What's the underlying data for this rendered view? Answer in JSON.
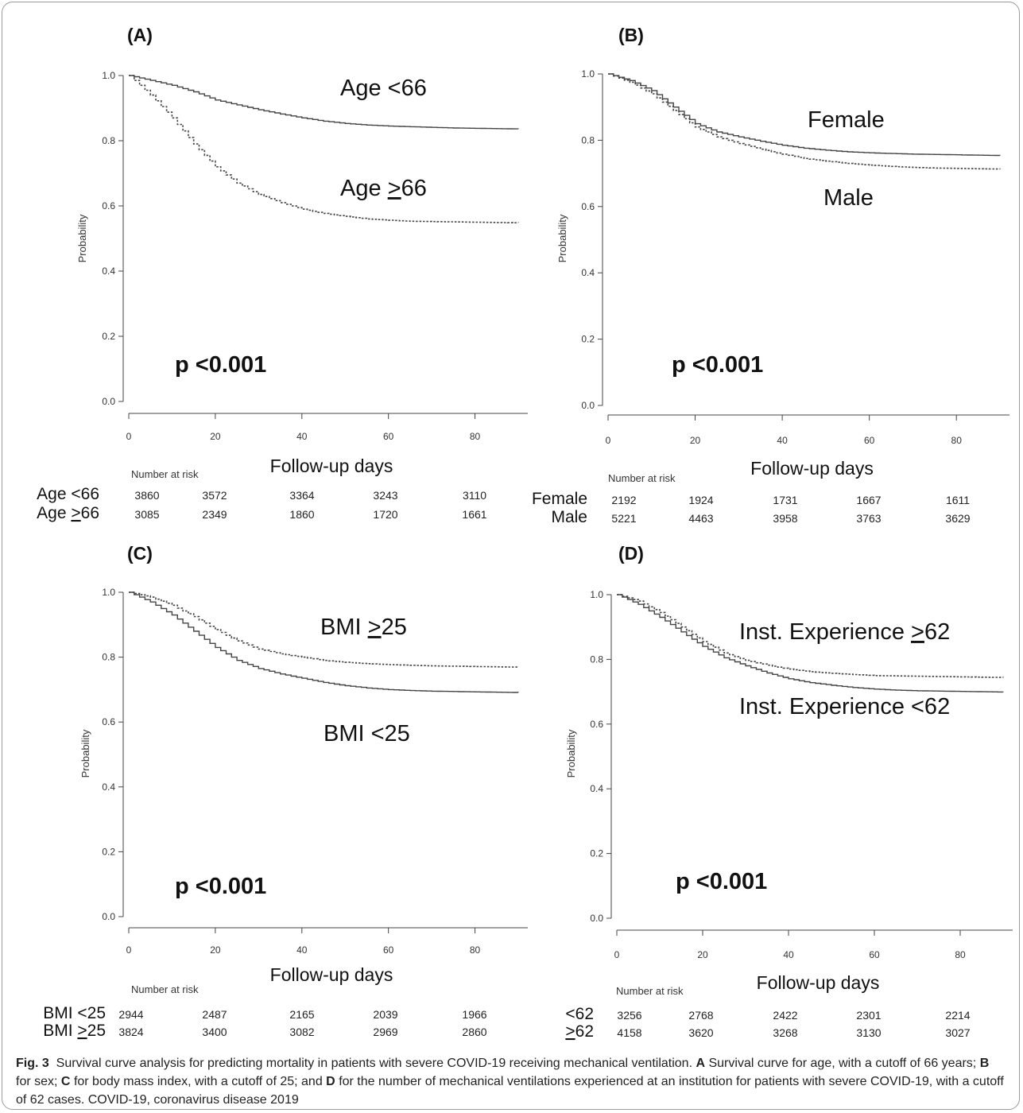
{
  "chart_data": [
    {
      "type": "line",
      "panel": "(A)",
      "xlabel": "Follow-up days",
      "ylabel": "Probability",
      "xlim": [
        0,
        90
      ],
      "ylim": [
        0,
        1.0
      ],
      "xticks": [
        "0",
        "20",
        "40",
        "60",
        "80"
      ],
      "yticks": [
        "0.0",
        "0.2",
        "0.4",
        "0.6",
        "0.8",
        "1.0"
      ],
      "pvalue": "p <0.001",
      "series": [
        {
          "name": "Age <66",
          "style": "solid",
          "x": [
            0,
            5,
            10,
            15,
            20,
            25,
            30,
            35,
            40,
            45,
            50,
            55,
            60,
            65,
            70,
            75,
            80,
            85,
            90
          ],
          "y": [
            1.0,
            0.985,
            0.97,
            0.95,
            0.925,
            0.91,
            0.895,
            0.882,
            0.87,
            0.86,
            0.853,
            0.848,
            0.845,
            0.843,
            0.841,
            0.839,
            0.838,
            0.837,
            0.836
          ]
        },
        {
          "name": "Age ≥66",
          "style": "dashed",
          "x": [
            0,
            5,
            10,
            15,
            20,
            25,
            30,
            35,
            40,
            45,
            50,
            55,
            60,
            65,
            70,
            75,
            80,
            85,
            90
          ],
          "y": [
            1.0,
            0.94,
            0.87,
            0.79,
            0.72,
            0.67,
            0.635,
            0.61,
            0.59,
            0.577,
            0.568,
            0.56,
            0.556,
            0.553,
            0.552,
            0.551,
            0.55,
            0.549,
            0.548
          ]
        }
      ],
      "curve_labels": [
        {
          "text": "Age <66",
          "underline": ""
        },
        {
          "text": "Age >66",
          "underline": ">"
        }
      ],
      "number_at_risk": {
        "title": "Number at risk",
        "rows": [
          {
            "label": "Age <66",
            "values": [
              "3860",
              "3572",
              "3364",
              "3243",
              "3110"
            ]
          },
          {
            "label": "Age >66",
            "values": [
              "3085",
              "2349",
              "1860",
              "1720",
              "1661"
            ]
          }
        ]
      }
    },
    {
      "type": "line",
      "panel": "(B)",
      "xlabel": "Follow-up days",
      "ylabel": "Probability",
      "xlim": [
        0,
        90
      ],
      "ylim": [
        0,
        1.0
      ],
      "xticks": [
        "0",
        "20",
        "40",
        "60",
        "80"
      ],
      "yticks": [
        "0.0",
        "0.2",
        "0.4",
        "0.6",
        "0.8",
        "1.0"
      ],
      "pvalue": "p <0.001",
      "series": [
        {
          "name": "Female",
          "style": "solid",
          "x": [
            0,
            5,
            10,
            15,
            20,
            25,
            30,
            35,
            40,
            45,
            50,
            55,
            60,
            65,
            70,
            75,
            80,
            85,
            90
          ],
          "y": [
            1.0,
            0.98,
            0.95,
            0.9,
            0.85,
            0.825,
            0.81,
            0.797,
            0.785,
            0.776,
            0.77,
            0.765,
            0.762,
            0.76,
            0.758,
            0.757,
            0.756,
            0.755,
            0.754
          ]
        },
        {
          "name": "Male",
          "style": "dashed",
          "x": [
            0,
            5,
            10,
            15,
            20,
            25,
            30,
            35,
            40,
            45,
            50,
            55,
            60,
            65,
            70,
            75,
            80,
            85,
            90
          ],
          "y": [
            1.0,
            0.975,
            0.94,
            0.89,
            0.84,
            0.81,
            0.79,
            0.773,
            0.758,
            0.745,
            0.737,
            0.73,
            0.725,
            0.721,
            0.718,
            0.716,
            0.715,
            0.714,
            0.713
          ]
        }
      ],
      "curve_labels": [
        {
          "text": "Female",
          "underline": ""
        },
        {
          "text": "Male",
          "underline": ""
        }
      ],
      "number_at_risk": {
        "title": "Number at risk",
        "rows": [
          {
            "label": "Female",
            "values": [
              "2192",
              "1924",
              "1731",
              "1667",
              "1611"
            ]
          },
          {
            "label": "Male",
            "values": [
              "5221",
              "4463",
              "3958",
              "3763",
              "3629"
            ]
          }
        ]
      }
    },
    {
      "type": "line",
      "panel": "(C)",
      "xlabel": "Follow-up days",
      "ylabel": "Probability",
      "xlim": [
        0,
        90
      ],
      "ylim": [
        0,
        1.0
      ],
      "xticks": [
        "0",
        "20",
        "40",
        "60",
        "80"
      ],
      "yticks": [
        "0.0",
        "0.2",
        "0.4",
        "0.6",
        "0.8",
        "1.0"
      ],
      "pvalue": "p <0.001",
      "series": [
        {
          "name": "BMI <25",
          "style": "solid",
          "x": [
            0,
            5,
            10,
            15,
            20,
            25,
            30,
            35,
            40,
            45,
            50,
            55,
            60,
            65,
            70,
            75,
            80,
            85,
            90
          ],
          "y": [
            1.0,
            0.97,
            0.93,
            0.88,
            0.83,
            0.79,
            0.765,
            0.748,
            0.735,
            0.722,
            0.712,
            0.705,
            0.7,
            0.697,
            0.695,
            0.694,
            0.693,
            0.692,
            0.691
          ]
        },
        {
          "name": "BMI ≥25",
          "style": "dashed",
          "x": [
            0,
            5,
            10,
            15,
            20,
            25,
            30,
            35,
            40,
            45,
            50,
            55,
            60,
            65,
            70,
            75,
            80,
            85,
            90
          ],
          "y": [
            1.0,
            0.985,
            0.96,
            0.925,
            0.885,
            0.85,
            0.825,
            0.81,
            0.8,
            0.79,
            0.784,
            0.78,
            0.777,
            0.775,
            0.773,
            0.772,
            0.771,
            0.77,
            0.769
          ]
        }
      ],
      "curve_labels": [
        {
          "text": "BMI >25",
          "underline": ">"
        },
        {
          "text": "BMI <25",
          "underline": ""
        }
      ],
      "number_at_risk": {
        "title": "Number at risk",
        "rows": [
          {
            "label": "BMI <25",
            "values": [
              "2944",
              "2487",
              "2165",
              "2039",
              "1966"
            ]
          },
          {
            "label": "BMI >25",
            "values": [
              "3824",
              "3400",
              "3082",
              "2969",
              "2860"
            ]
          }
        ]
      }
    },
    {
      "type": "line",
      "panel": "(D)",
      "xlabel": "Follow-up days",
      "ylabel": "Probability",
      "xlim": [
        0,
        90
      ],
      "ylim": [
        0,
        1.0
      ],
      "xticks": [
        "0",
        "20",
        "40",
        "60",
        "80"
      ],
      "yticks": [
        "0.0",
        "0.2",
        "0.4",
        "0.6",
        "0.8",
        "1.0"
      ],
      "pvalue": "p <0.001",
      "series": [
        {
          "name": "Inst. Experience <62",
          "style": "solid",
          "x": [
            0,
            5,
            10,
            15,
            20,
            25,
            30,
            35,
            40,
            45,
            50,
            55,
            60,
            65,
            70,
            75,
            80,
            85,
            90
          ],
          "y": [
            1.0,
            0.97,
            0.93,
            0.885,
            0.84,
            0.805,
            0.78,
            0.758,
            0.74,
            0.728,
            0.72,
            0.713,
            0.708,
            0.705,
            0.703,
            0.702,
            0.701,
            0.7,
            0.699
          ]
        },
        {
          "name": "Inst. Experience ≥62",
          "style": "dashed",
          "x": [
            0,
            5,
            10,
            15,
            20,
            25,
            30,
            35,
            40,
            45,
            50,
            55,
            60,
            65,
            70,
            75,
            80,
            85,
            90
          ],
          "y": [
            1.0,
            0.98,
            0.945,
            0.9,
            0.855,
            0.82,
            0.797,
            0.782,
            0.77,
            0.762,
            0.757,
            0.753,
            0.75,
            0.749,
            0.748,
            0.747,
            0.746,
            0.745,
            0.744
          ]
        }
      ],
      "curve_labels": [
        {
          "text": "Inst. Experience >62",
          "underline": ">"
        },
        {
          "text": "Inst. Experience <62",
          "underline": ""
        }
      ],
      "number_at_risk": {
        "title": "Number at risk",
        "rows": [
          {
            "label": "<62",
            "values": [
              "3256",
              "2768",
              "2422",
              "2301",
              "2214"
            ]
          },
          {
            "label": ">62",
            "values": [
              "4158",
              "3620",
              "3268",
              "3130",
              "3027"
            ]
          }
        ]
      }
    }
  ],
  "caption": {
    "fig_label": "Fig. 3",
    "text_1": "Survival curve analysis for predicting mortality in patients with severe COVID-19 receiving mechanical ventilation.",
    "key_a": "A",
    "text_a": "Survival curve for age, with a cutoff of 66 years;",
    "key_b": "B",
    "text_b": "for sex;",
    "key_c": "C",
    "text_c": "for body mass index, with a cutoff of 25; and",
    "key_d": "D",
    "text_d": "for the number of mechanical ventilations experienced at an institution for patients with severe COVID-19, with a cutoff of 62 cases. COVID-19, coronavirus disease 2019"
  }
}
